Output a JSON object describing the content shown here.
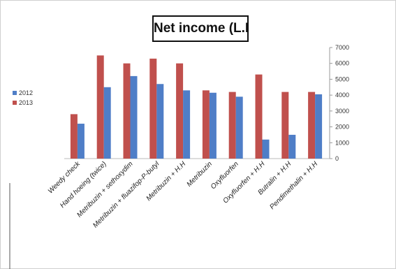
{
  "chart_data": {
    "type": "bar",
    "title": "Net income (L.E",
    "categories": [
      "Weedy check",
      "Hand hoeing (twice)",
      "Metribuzin + sethoxydim",
      "Metribuzin + fluazifop-P-butyl",
      "Metribuzin + H.H",
      "Metribuzin",
      "Oxyfluorfen",
      "Oxyfluorfen + H.H",
      "Butralin + H.H",
      "Pendimethalin + H.H"
    ],
    "series": [
      {
        "name": "2012",
        "color": "#4f7ec7",
        "values": [
          2200,
          4500,
          5200,
          4700,
          4300,
          4150,
          3900,
          1200,
          1500,
          4050
        ]
      },
      {
        "name": "2013",
        "color": "#c0504d",
        "values": [
          2800,
          6500,
          6000,
          6300,
          6000,
          4300,
          4200,
          5300,
          4200,
          4200
        ]
      }
    ],
    "yticks": [
      "0",
      "1000",
      "2000",
      "3000",
      "4000",
      "5000",
      "6000",
      "7000"
    ],
    "ylim": [
      0,
      7000
    ],
    "grid": false,
    "legend_position": "left"
  }
}
